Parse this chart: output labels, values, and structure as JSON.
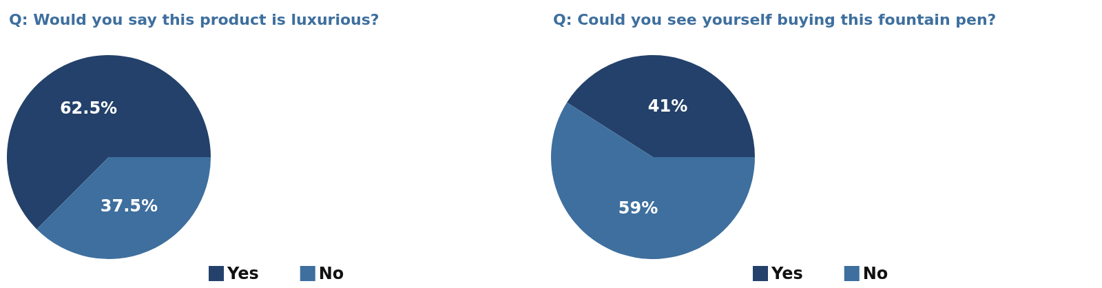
{
  "chart_data": [
    {
      "type": "pie",
      "title": "Q: Would you say this product is luxurious?",
      "categories": [
        "Yes",
        "No"
      ],
      "values": [
        62.5,
        37.5
      ],
      "colors": [
        "#23416a",
        "#3e6f9e"
      ],
      "value_labels": [
        "62.5%",
        "37.5%"
      ],
      "legend": "bottom"
    },
    {
      "type": "pie",
      "title": "Q: Could you see yourself buying this fountain pen?",
      "categories": [
        "Yes",
        "No"
      ],
      "values": [
        41,
        59
      ],
      "colors": [
        "#23416a",
        "#3e6f9e"
      ],
      "value_labels": [
        "41%",
        "59%"
      ],
      "legend": "bottom"
    }
  ]
}
